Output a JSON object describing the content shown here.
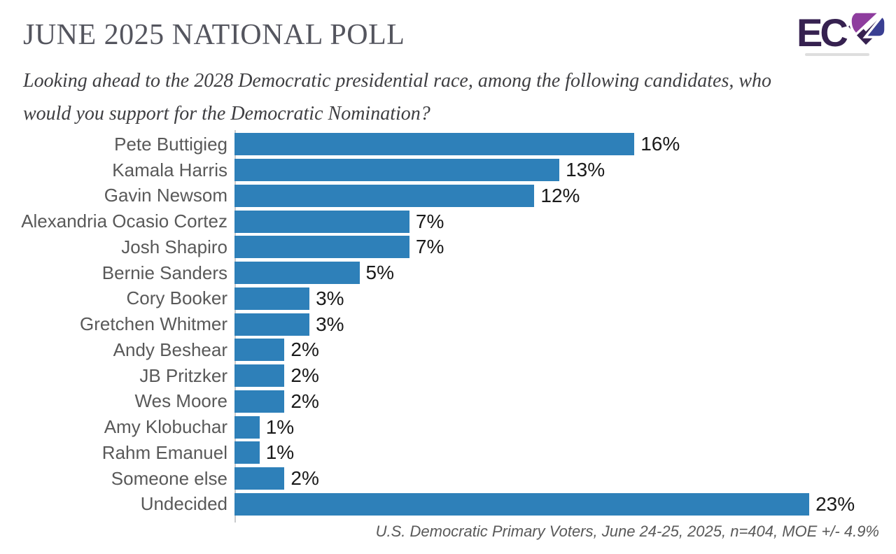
{
  "page": {
    "title": "JUNE 2025 NATIONAL POLL",
    "subtitle_lines": [
      "Looking ahead to the 2028 Democratic presidential race, among the following candidates, who",
      "would you support for the Democratic Nomination?"
    ],
    "footnote": "U.S. Democratic Primary Voters, June 24-25, 2025, n=404, MOE +/- 4.9%"
  },
  "logo": {
    "wordmark": "EC",
    "stylized_letter": "P"
  },
  "colors": {
    "bar": "#2e80b9",
    "category_label": "#595959",
    "value_label": "#1a1a1a",
    "title": "#54555e",
    "subtitle": "#3e3e41",
    "footnote": "#595959",
    "axis": "#c9cbcd",
    "logo_dark": "#362150",
    "logo_purple": "#8e3d9e",
    "logo_blue": "#3a3f92"
  },
  "chart_data": {
    "type": "bar",
    "orientation": "horizontal",
    "title": "JUNE 2025 NATIONAL POLL",
    "xlabel": "",
    "ylabel": "",
    "xlim": [
      0,
      23
    ],
    "grid": false,
    "legend": null,
    "data_labels": true,
    "value_suffix": "%",
    "categories": [
      "Pete Buttigieg",
      "Kamala Harris",
      "Gavin Newsom",
      "Alexandria Ocasio Cortez",
      "Josh Shapiro",
      "Bernie Sanders",
      "Cory Booker",
      "Gretchen Whitmer",
      "Andy Beshear",
      "JB Pritzker",
      "Wes Moore",
      "Amy Klobuchar",
      "Rahm Emanuel",
      "Someone else",
      "Undecided"
    ],
    "values": [
      16,
      13,
      12,
      7,
      7,
      5,
      3,
      3,
      2,
      2,
      2,
      1,
      1,
      2,
      23
    ]
  }
}
